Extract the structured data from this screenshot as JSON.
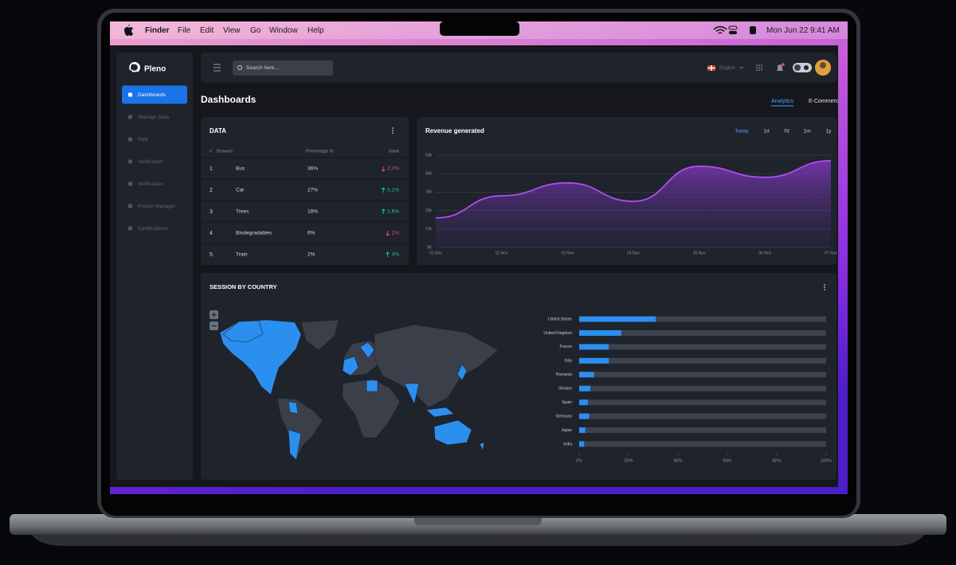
{
  "menubar": {
    "app": "Finder",
    "menus": [
      "File",
      "Edit",
      "View",
      "Go",
      "Window",
      "Help"
    ],
    "clock": "Mon Jun 22  9:41 AM"
  },
  "sidebar": {
    "brand": "Pleno",
    "items": [
      "Dashboards",
      "Manage Data",
      "Help",
      "Verification",
      "Verification",
      "Project Manager",
      "Certifications"
    ]
  },
  "topbar": {
    "search_placeholder": "Search here...",
    "language": "English"
  },
  "page": {
    "title": "Dashboards",
    "tabs": [
      "Analytics",
      "E-Commerce"
    ]
  },
  "data_table": {
    "title": "DATA",
    "columns": [
      "#",
      "Browser",
      "Percentage %",
      "Value"
    ],
    "rows": [
      {
        "index": "1",
        "browser": "Bus",
        "percentage": "36%",
        "value": "2.7%",
        "trend": "down"
      },
      {
        "index": "2",
        "browser": "Car",
        "percentage": "27%",
        "value": "5.1%",
        "trend": "up"
      },
      {
        "index": "3",
        "browser": "Trees",
        "percentage": "18%",
        "value": "1.6%",
        "trend": "up"
      },
      {
        "index": "4",
        "browser": "Biodegradables",
        "percentage": "6%",
        "value": "1%",
        "trend": "down"
      },
      {
        "index": "5",
        "browser": "Train",
        "percentage": "2%",
        "value": "3%",
        "trend": "up"
      }
    ]
  },
  "revenue_chart": {
    "type": "area",
    "title": "Revenue generated",
    "ranges": [
      "Today",
      "1d",
      "7d",
      "1m",
      "1y"
    ],
    "x": [
      "01 Nov",
      "02 Nov",
      "03 Nov",
      "04 Nov",
      "05 Nov",
      "06 Nov",
      "07 Nov"
    ],
    "values": [
      16000,
      28000,
      35000,
      25000,
      44000,
      38000,
      47000
    ],
    "ylim": [
      0,
      50000
    ],
    "yticks": [
      {
        "value": 0,
        "label": "0K"
      },
      {
        "value": 10000,
        "label": "10k"
      },
      {
        "value": 20000,
        "label": "20k"
      },
      {
        "value": 30000,
        "label": "30k"
      },
      {
        "value": 40000,
        "label": "40k"
      },
      {
        "value": 50000,
        "label": "50k"
      }
    ],
    "color": "#b04cf0",
    "grid": true
  },
  "session_chart": {
    "type": "bar",
    "orientation": "horizontal",
    "title": "SESSION BY COUNTRY",
    "categories": [
      "United States",
      "United Kingdom",
      "France",
      "Italy",
      "Romania",
      "Ukraine",
      "Spain",
      "Germany",
      "Japan",
      "India"
    ],
    "values": [
      31,
      17,
      12,
      12,
      6,
      4.5,
      3.5,
      4,
      2.5,
      2
    ],
    "xlim": [
      0,
      100
    ],
    "xticks": [
      {
        "value": 0,
        "label": "0%"
      },
      {
        "value": 20,
        "label": "20%"
      },
      {
        "value": 40,
        "label": "40%"
      },
      {
        "value": 60,
        "label": "60%"
      },
      {
        "value": 80,
        "label": "80%"
      },
      {
        "value": 100,
        "label": "100%"
      }
    ],
    "color": "#2b8ff0",
    "track_color": "#3d424d"
  }
}
